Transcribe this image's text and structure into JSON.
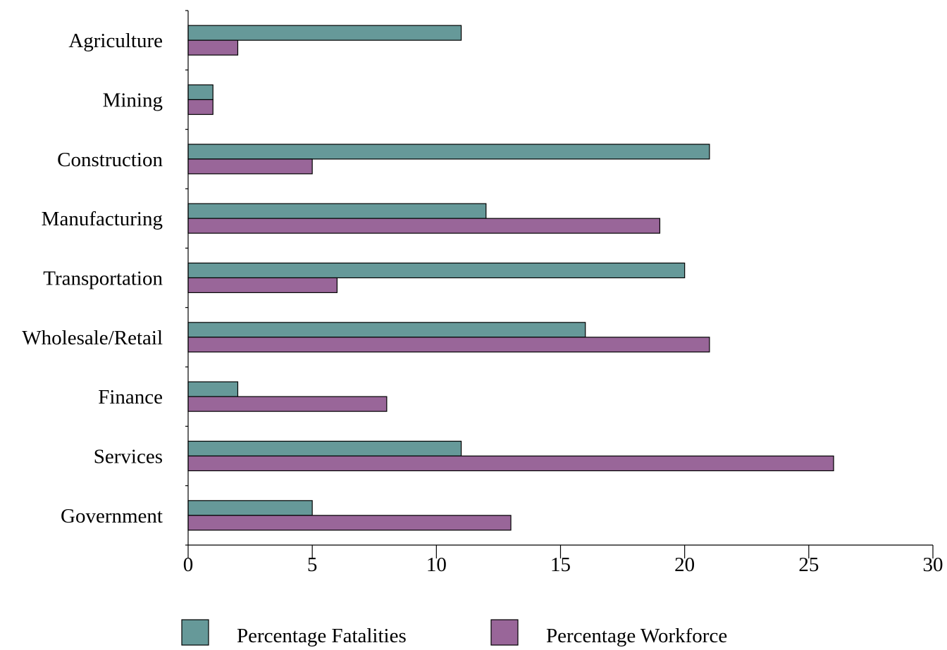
{
  "chart_data": {
    "type": "bar",
    "orientation": "horizontal",
    "title": "",
    "xlabel": "",
    "ylabel": "",
    "categories": [
      "Agriculture",
      "Mining",
      "Construction",
      "Manufacturing",
      "Transportation",
      "Wholesale/Retail",
      "Finance",
      "Services",
      "Government"
    ],
    "series": [
      {
        "name": "Percentage Fatalities",
        "color": "#669999",
        "values": [
          11,
          1,
          21,
          12,
          20,
          16,
          2,
          11,
          5
        ]
      },
      {
        "name": "Percentage Workforce",
        "color": "#996699",
        "values": [
          2,
          1,
          5,
          19,
          6,
          21,
          8,
          26,
          13
        ]
      }
    ],
    "xlim": [
      0,
      30
    ],
    "xticks": [
      "0",
      "5",
      "10",
      "15",
      "20",
      "25",
      "30"
    ],
    "xtick_values": [
      0,
      5,
      10,
      15,
      20,
      25,
      30
    ],
    "grid": false,
    "legend_position": "bottom"
  }
}
